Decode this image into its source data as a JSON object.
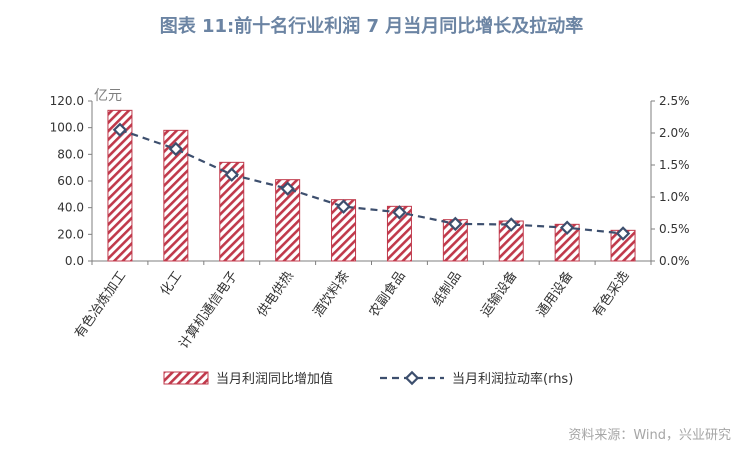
{
  "title": "图表 11:前十名行业利润 7 月当月同比增长及拉动率",
  "source": "资料来源：Wind，兴业研究",
  "chart_data": {
    "type": "bar",
    "categories": [
      "有色冶炼加工",
      "化工",
      "计算机通信电子",
      "供电供热",
      "酒饮料茶",
      "农副食品",
      "纸制品",
      "运输设备",
      "通用设备",
      "有色采选"
    ],
    "series": [
      {
        "name": "当月利润同比增加值",
        "type": "bar",
        "axis": "left",
        "values": [
          113.0,
          98.0,
          74.0,
          61.0,
          46.0,
          41.0,
          31.0,
          30.0,
          27.5,
          23.0
        ]
      },
      {
        "name": "当月利润拉动率(rhs)",
        "type": "line",
        "axis": "right",
        "values": [
          2.05,
          1.75,
          1.35,
          1.13,
          0.85,
          0.76,
          0.58,
          0.57,
          0.52,
          0.43
        ]
      }
    ],
    "y_unit": "亿元",
    "ylim": [
      0,
      120
    ],
    "yticks": [
      "0.0",
      "20.0",
      "40.0",
      "60.0",
      "80.0",
      "100.0",
      "120.0"
    ],
    "y2lim": [
      0,
      2.5
    ],
    "y2ticks": [
      "0.0%",
      "0.5%",
      "1.0%",
      "1.5%",
      "2.0%",
      "2.5%"
    ],
    "colors": {
      "bar_stripe": "#c0394b",
      "line": "#3d4f6e",
      "marker_fill": "#ffffff"
    },
    "legend_position": "bottom"
  }
}
